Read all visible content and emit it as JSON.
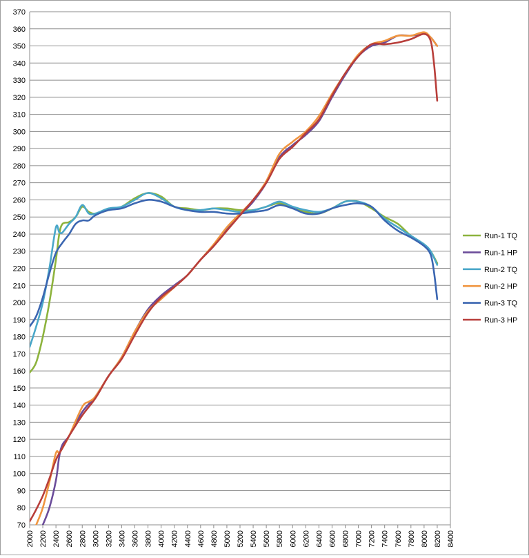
{
  "chart_data": {
    "type": "line",
    "title": "",
    "xlabel": "",
    "ylabel": "",
    "xlim": [
      2000,
      8400
    ],
    "ylim": [
      70,
      370
    ],
    "xticks": [
      2000,
      2200,
      2400,
      2600,
      2800,
      3000,
      3200,
      3400,
      3600,
      3800,
      4000,
      4200,
      4400,
      4600,
      4800,
      5000,
      5200,
      5400,
      5600,
      5800,
      6000,
      6200,
      6400,
      6600,
      6800,
      7000,
      7200,
      7400,
      7600,
      7800,
      8000,
      8200,
      8400
    ],
    "yticks": [
      70,
      80,
      90,
      100,
      110,
      120,
      130,
      140,
      150,
      160,
      170,
      180,
      190,
      200,
      210,
      220,
      230,
      240,
      250,
      260,
      270,
      280,
      290,
      300,
      310,
      320,
      330,
      340,
      350,
      360,
      370
    ],
    "grid": "horizontal",
    "legend_position": "right",
    "series": [
      {
        "name": "Run-1 TQ",
        "color": "#8db33d",
        "points": [
          [
            2000,
            159
          ],
          [
            2100,
            165
          ],
          [
            2200,
            180
          ],
          [
            2300,
            200
          ],
          [
            2400,
            225
          ],
          [
            2450,
            240
          ],
          [
            2500,
            246
          ],
          [
            2600,
            247
          ],
          [
            2700,
            250
          ],
          [
            2800,
            256
          ],
          [
            2900,
            253
          ],
          [
            3000,
            252
          ],
          [
            3200,
            254
          ],
          [
            3400,
            256
          ],
          [
            3600,
            261
          ],
          [
            3800,
            264
          ],
          [
            4000,
            262
          ],
          [
            4200,
            256
          ],
          [
            4400,
            255
          ],
          [
            4600,
            254
          ],
          [
            4800,
            255
          ],
          [
            5000,
            255
          ],
          [
            5200,
            254
          ],
          [
            5400,
            254
          ],
          [
            5600,
            256
          ],
          [
            5800,
            258
          ],
          [
            6000,
            255
          ],
          [
            6200,
            253
          ],
          [
            6400,
            252
          ],
          [
            6600,
            255
          ],
          [
            6800,
            259
          ],
          [
            7000,
            259
          ],
          [
            7200,
            255
          ],
          [
            7400,
            250
          ],
          [
            7600,
            246
          ],
          [
            7800,
            239
          ],
          [
            8000,
            234
          ],
          [
            8100,
            230
          ],
          [
            8200,
            223
          ]
        ]
      },
      {
        "name": "Run-1 HP",
        "color": "#6b4c9a",
        "points": [
          [
            2200,
            70
          ],
          [
            2300,
            80
          ],
          [
            2400,
            96
          ],
          [
            2450,
            110
          ],
          [
            2500,
            117
          ],
          [
            2600,
            122
          ],
          [
            2800,
            136
          ],
          [
            3000,
            145
          ],
          [
            3200,
            157
          ],
          [
            3400,
            168
          ],
          [
            3600,
            183
          ],
          [
            3800,
            196
          ],
          [
            4000,
            204
          ],
          [
            4200,
            210
          ],
          [
            4400,
            216
          ],
          [
            4600,
            225
          ],
          [
            4800,
            233
          ],
          [
            5000,
            243
          ],
          [
            5200,
            251
          ],
          [
            5400,
            259
          ],
          [
            5600,
            270
          ],
          [
            5800,
            285
          ],
          [
            6000,
            292
          ],
          [
            6200,
            298
          ],
          [
            6400,
            306
          ],
          [
            6600,
            320
          ],
          [
            6800,
            333
          ],
          [
            7000,
            344
          ],
          [
            7200,
            350
          ],
          [
            7400,
            352
          ],
          [
            7600,
            356
          ],
          [
            7800,
            356
          ],
          [
            8000,
            357
          ],
          [
            8100,
            355
          ],
          [
            8200,
            350
          ]
        ]
      },
      {
        "name": "Run-2 TQ",
        "color": "#4aa7c9",
        "points": [
          [
            2000,
            174
          ],
          [
            2100,
            186
          ],
          [
            2200,
            200
          ],
          [
            2300,
            220
          ],
          [
            2400,
            244
          ],
          [
            2450,
            241
          ],
          [
            2500,
            241
          ],
          [
            2600,
            246
          ],
          [
            2700,
            250
          ],
          [
            2800,
            257
          ],
          [
            2900,
            252
          ],
          [
            3000,
            252
          ],
          [
            3200,
            255
          ],
          [
            3400,
            256
          ],
          [
            3600,
            260
          ],
          [
            3800,
            264
          ],
          [
            4000,
            261
          ],
          [
            4200,
            256
          ],
          [
            4400,
            254
          ],
          [
            4600,
            254
          ],
          [
            4800,
            255
          ],
          [
            5000,
            254
          ],
          [
            5200,
            253
          ],
          [
            5400,
            254
          ],
          [
            5600,
            256
          ],
          [
            5800,
            259
          ],
          [
            6000,
            256
          ],
          [
            6200,
            254
          ],
          [
            6400,
            253
          ],
          [
            6600,
            255
          ],
          [
            6800,
            259
          ],
          [
            7000,
            259
          ],
          [
            7200,
            256
          ],
          [
            7400,
            249
          ],
          [
            7600,
            244
          ],
          [
            7800,
            239
          ],
          [
            8000,
            234
          ],
          [
            8100,
            230
          ],
          [
            8200,
            222
          ]
        ]
      },
      {
        "name": "Run-2 HP",
        "color": "#f0953f",
        "points": [
          [
            2100,
            70
          ],
          [
            2200,
            80
          ],
          [
            2300,
            95
          ],
          [
            2400,
            112
          ],
          [
            2450,
            112
          ],
          [
            2500,
            115
          ],
          [
            2600,
            122
          ],
          [
            2800,
            139
          ],
          [
            2900,
            142
          ],
          [
            3000,
            145
          ],
          [
            3200,
            157
          ],
          [
            3400,
            168
          ],
          [
            3600,
            183
          ],
          [
            3800,
            195
          ],
          [
            4000,
            202
          ],
          [
            4200,
            209
          ],
          [
            4400,
            216
          ],
          [
            4600,
            225
          ],
          [
            4800,
            234
          ],
          [
            5000,
            244
          ],
          [
            5200,
            252
          ],
          [
            5400,
            260
          ],
          [
            5600,
            271
          ],
          [
            5800,
            287
          ],
          [
            6000,
            294
          ],
          [
            6200,
            300
          ],
          [
            6400,
            309
          ],
          [
            6600,
            322
          ],
          [
            6800,
            334
          ],
          [
            7000,
            345
          ],
          [
            7200,
            351
          ],
          [
            7400,
            353
          ],
          [
            7600,
            356
          ],
          [
            7800,
            356
          ],
          [
            8000,
            358
          ],
          [
            8100,
            355
          ],
          [
            8200,
            350
          ]
        ]
      },
      {
        "name": "Run-3 TQ",
        "color": "#3b66b1",
        "points": [
          [
            2000,
            186
          ],
          [
            2100,
            192
          ],
          [
            2200,
            203
          ],
          [
            2300,
            217
          ],
          [
            2400,
            229
          ],
          [
            2500,
            235
          ],
          [
            2600,
            240
          ],
          [
            2700,
            246
          ],
          [
            2800,
            248
          ],
          [
            2900,
            248
          ],
          [
            3000,
            251
          ],
          [
            3200,
            254
          ],
          [
            3400,
            255
          ],
          [
            3600,
            258
          ],
          [
            3800,
            260
          ],
          [
            4000,
            259
          ],
          [
            4200,
            256
          ],
          [
            4400,
            254
          ],
          [
            4600,
            253
          ],
          [
            4800,
            253
          ],
          [
            5000,
            252
          ],
          [
            5200,
            252
          ],
          [
            5400,
            253
          ],
          [
            5600,
            254
          ],
          [
            5800,
            257
          ],
          [
            6000,
            255
          ],
          [
            6200,
            252
          ],
          [
            6400,
            252
          ],
          [
            6600,
            255
          ],
          [
            6800,
            257
          ],
          [
            7000,
            258
          ],
          [
            7200,
            256
          ],
          [
            7400,
            248
          ],
          [
            7600,
            242
          ],
          [
            7800,
            238
          ],
          [
            8000,
            233
          ],
          [
            8100,
            228
          ],
          [
            8150,
            218
          ],
          [
            8200,
            202
          ]
        ]
      },
      {
        "name": "Run-3 HP",
        "color": "#b83e3a",
        "points": [
          [
            2000,
            72
          ],
          [
            2100,
            79
          ],
          [
            2200,
            87
          ],
          [
            2300,
            97
          ],
          [
            2400,
            108
          ],
          [
            2500,
            115
          ],
          [
            2600,
            122
          ],
          [
            2800,
            134
          ],
          [
            3000,
            144
          ],
          [
            3200,
            157
          ],
          [
            3400,
            167
          ],
          [
            3600,
            181
          ],
          [
            3800,
            194
          ],
          [
            4000,
            203
          ],
          [
            4200,
            209
          ],
          [
            4400,
            216
          ],
          [
            4600,
            225
          ],
          [
            4800,
            233
          ],
          [
            5000,
            242
          ],
          [
            5200,
            251
          ],
          [
            5400,
            260
          ],
          [
            5600,
            270
          ],
          [
            5800,
            284
          ],
          [
            6000,
            291
          ],
          [
            6200,
            299
          ],
          [
            6400,
            307
          ],
          [
            6600,
            321
          ],
          [
            6800,
            334
          ],
          [
            7000,
            344
          ],
          [
            7200,
            351
          ],
          [
            7400,
            351
          ],
          [
            7600,
            352
          ],
          [
            7800,
            354
          ],
          [
            8000,
            357
          ],
          [
            8100,
            353
          ],
          [
            8150,
            340
          ],
          [
            8200,
            318
          ]
        ]
      }
    ]
  }
}
